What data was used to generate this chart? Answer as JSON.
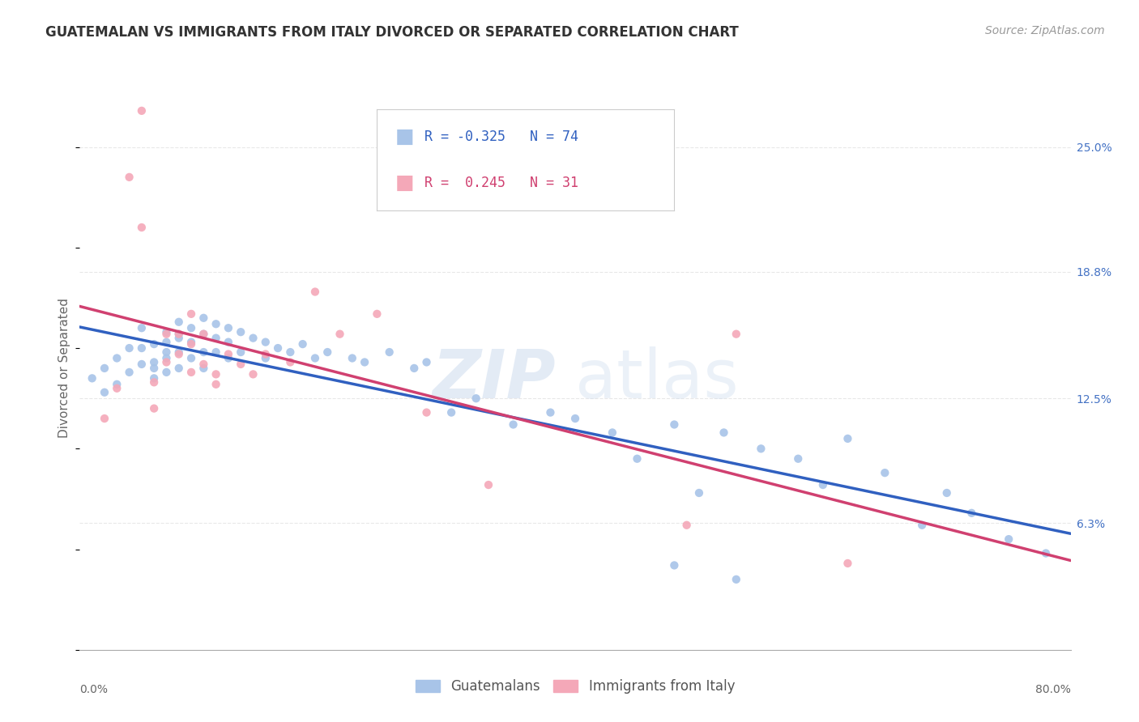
{
  "title": "GUATEMALAN VS IMMIGRANTS FROM ITALY DIVORCED OR SEPARATED CORRELATION CHART",
  "source": "Source: ZipAtlas.com",
  "ylabel": "Divorced or Separated",
  "right_yticks": [
    "25.0%",
    "18.8%",
    "12.5%",
    "6.3%"
  ],
  "right_ytick_vals": [
    0.25,
    0.188,
    0.125,
    0.063
  ],
  "xmin": 0.0,
  "xmax": 0.8,
  "ymin": 0.0,
  "ymax": 0.28,
  "guatemalan_color": "#a8c4e8",
  "italy_color": "#f4a8b8",
  "guatemalan_line_color": "#3060c0",
  "italy_line_color": "#d04070",
  "italy_dash_color": "#d8a0b0",
  "legend_guatemalan_label": "Guatemalans",
  "legend_italy_label": "Immigrants from Italy",
  "R_guatemalan": -0.325,
  "N_guatemalan": 74,
  "R_italy": 0.245,
  "N_italy": 31,
  "watermark_zip": "ZIP",
  "watermark_atlas": "atlas",
  "background_color": "#ffffff",
  "grid_color": "#e8e8e8",
  "guatemalan_points_x": [
    0.01,
    0.02,
    0.02,
    0.03,
    0.03,
    0.04,
    0.04,
    0.05,
    0.05,
    0.05,
    0.06,
    0.06,
    0.06,
    0.06,
    0.07,
    0.07,
    0.07,
    0.07,
    0.07,
    0.08,
    0.08,
    0.08,
    0.08,
    0.08,
    0.09,
    0.09,
    0.09,
    0.1,
    0.1,
    0.1,
    0.1,
    0.11,
    0.11,
    0.11,
    0.12,
    0.12,
    0.12,
    0.13,
    0.13,
    0.14,
    0.15,
    0.15,
    0.16,
    0.17,
    0.18,
    0.19,
    0.2,
    0.22,
    0.23,
    0.25,
    0.27,
    0.28,
    0.3,
    0.32,
    0.35,
    0.38,
    0.4,
    0.43,
    0.45,
    0.48,
    0.5,
    0.52,
    0.55,
    0.58,
    0.6,
    0.62,
    0.65,
    0.68,
    0.7,
    0.72,
    0.75,
    0.78,
    0.48,
    0.53
  ],
  "guatemalan_points_y": [
    0.135,
    0.128,
    0.14,
    0.132,
    0.145,
    0.138,
    0.15,
    0.142,
    0.15,
    0.16,
    0.135,
    0.143,
    0.152,
    0.14,
    0.148,
    0.158,
    0.145,
    0.153,
    0.138,
    0.155,
    0.163,
    0.148,
    0.157,
    0.14,
    0.16,
    0.153,
    0.145,
    0.165,
    0.157,
    0.148,
    0.14,
    0.162,
    0.155,
    0.148,
    0.16,
    0.153,
    0.145,
    0.158,
    0.148,
    0.155,
    0.153,
    0.145,
    0.15,
    0.148,
    0.152,
    0.145,
    0.148,
    0.145,
    0.143,
    0.148,
    0.14,
    0.143,
    0.118,
    0.125,
    0.112,
    0.118,
    0.115,
    0.108,
    0.095,
    0.112,
    0.078,
    0.108,
    0.1,
    0.095,
    0.082,
    0.105,
    0.088,
    0.062,
    0.078,
    0.068,
    0.055,
    0.048,
    0.042,
    0.035
  ],
  "italy_points_x": [
    0.02,
    0.03,
    0.04,
    0.05,
    0.05,
    0.06,
    0.06,
    0.07,
    0.07,
    0.08,
    0.08,
    0.09,
    0.09,
    0.09,
    0.1,
    0.1,
    0.11,
    0.11,
    0.12,
    0.13,
    0.14,
    0.15,
    0.17,
    0.19,
    0.21,
    0.24,
    0.28,
    0.33,
    0.49,
    0.53,
    0.62
  ],
  "italy_points_y": [
    0.115,
    0.13,
    0.235,
    0.268,
    0.21,
    0.133,
    0.12,
    0.143,
    0.157,
    0.157,
    0.147,
    0.167,
    0.152,
    0.138,
    0.157,
    0.142,
    0.137,
    0.132,
    0.147,
    0.142,
    0.137,
    0.147,
    0.143,
    0.178,
    0.157,
    0.167,
    0.118,
    0.082,
    0.062,
    0.157,
    0.043
  ]
}
